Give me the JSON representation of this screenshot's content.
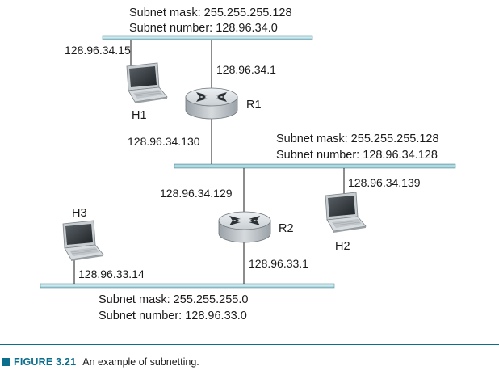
{
  "subnets": [
    {
      "mask": "Subnet mask: 255.255.255.128",
      "number": "Subnet number: 128.96.34.0"
    },
    {
      "mask": "Subnet mask: 255.255.255.128",
      "number": "Subnet number: 128.96.34.128"
    },
    {
      "mask": "Subnet mask: 255.255.255.0",
      "number": "Subnet number: 128.96.33.0"
    }
  ],
  "routers": [
    {
      "name": "R1",
      "if_top": "128.96.34.1",
      "if_bottom": "128.96.34.130"
    },
    {
      "name": "R2",
      "if_top": "128.96.34.129",
      "if_bottom": "128.96.33.1"
    }
  ],
  "hosts": [
    {
      "name": "H1",
      "ip": "128.96.34.15"
    },
    {
      "name": "H2",
      "ip": "128.96.34.139"
    },
    {
      "name": "H3",
      "ip": "128.96.33.14"
    }
  ],
  "caption": {
    "label": "FIGURE 3.21",
    "text": "An example of subnetting."
  }
}
